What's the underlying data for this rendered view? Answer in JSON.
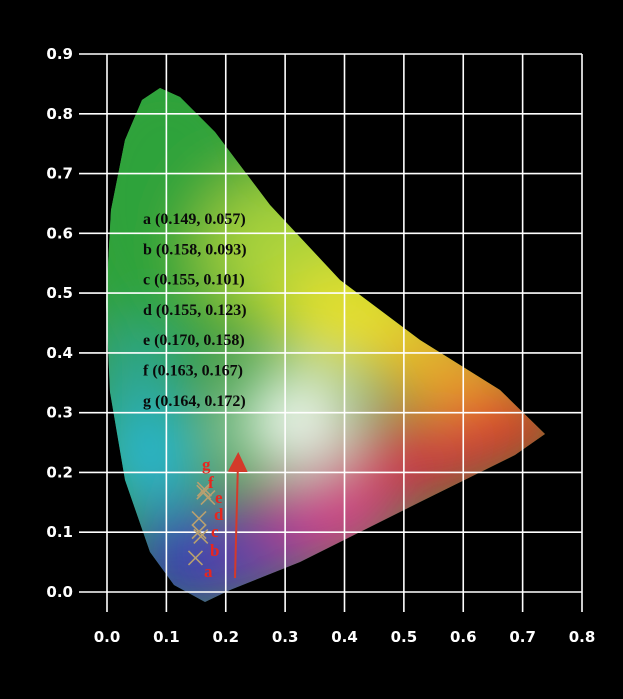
{
  "chart_data": {
    "type": "scatter",
    "title": "",
    "xlabel": "",
    "ylabel": "",
    "xlim": [
      0.0,
      0.8
    ],
    "ylim": [
      0.0,
      0.9
    ],
    "x_ticks": [
      "0.0",
      "0.1",
      "0.2",
      "0.3",
      "0.4",
      "0.5",
      "0.6",
      "0.7",
      "0.8"
    ],
    "y_ticks": [
      "0.0",
      "0.1",
      "0.2",
      "0.3",
      "0.4",
      "0.5",
      "0.6",
      "0.7",
      "0.8",
      "0.9"
    ],
    "grid": true,
    "background": "CIE 1931 chromaticity diagram",
    "series": [
      {
        "points": [
          {
            "label": "a",
            "x": 0.149,
            "y": 0.057,
            "text": "a (0.149, 0.057)"
          },
          {
            "label": "b",
            "x": 0.158,
            "y": 0.093,
            "text": "b (0.158, 0.093)"
          },
          {
            "label": "c",
            "x": 0.155,
            "y": 0.101,
            "text": "c (0.155, 0.101)"
          },
          {
            "label": "d",
            "x": 0.155,
            "y": 0.123,
            "text": "d (0.155, 0.123)"
          },
          {
            "label": "e",
            "x": 0.17,
            "y": 0.158,
            "text": "e (0.170, 0.158)"
          },
          {
            "label": "f",
            "x": 0.163,
            "y": 0.167,
            "text": "f (0.163, 0.167)"
          },
          {
            "label": "g",
            "x": 0.164,
            "y": 0.172,
            "text": "g (0.164, 0.172)"
          }
        ]
      }
    ],
    "colors": {
      "background": "#000000",
      "grid": "#ffffff",
      "marker": "#b8a070",
      "point_letters": "#e8261e",
      "arrow": "#d43a2a"
    }
  }
}
